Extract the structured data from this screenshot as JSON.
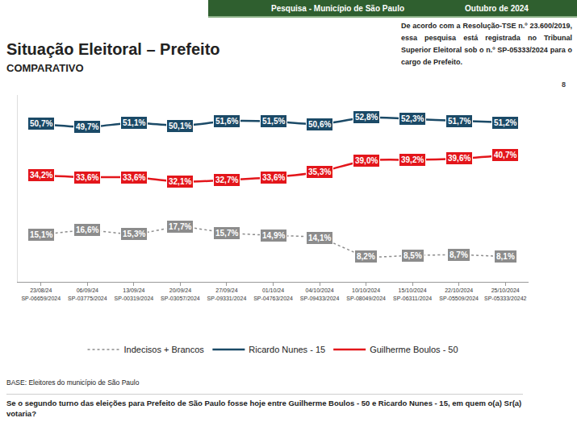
{
  "page": {
    "header_left": "Pesquisa - Município de São Paulo",
    "header_right": "Outubro de 2024",
    "registration_note": "De acordo com a Resolução-TSE n.º 23.600/2019, essa pesquisa está registrada no Tribunal Superior Eleitoral sob o n.º SP-05333/2024 para o cargo de Prefeito.",
    "page_number": "8",
    "base_note": "BASE: Eleitores do município de São Paulo",
    "question": "Se o segundo turno das eleições para Prefeito de São Paulo fosse hoje entre Guilherme Boulos - 50 e Ricardo Nunes - 15, em quem o(a) Sr(a) votaria?"
  },
  "chart_data": {
    "type": "line",
    "title": "Situação Eleitoral – Prefeito",
    "subtitle": "COMPARATIVO",
    "categories": [
      "23/08/24",
      "06/09/24",
      "13/09/24",
      "20/09/24",
      "27/09/24",
      "01/10/24",
      "04/10/2024",
      "10/10/2024",
      "15/10/2024",
      "22/10/2024",
      "25/10/2024"
    ],
    "category_registrations": [
      "SP-06659/2024",
      "SP-03775/2024",
      "SP-00319/2024",
      "SP-03057/2024",
      "SP-09331/2024",
      "SP-04763/2024",
      "SP-09433/2024",
      "SP-08049/2024",
      "SP-06311/2024",
      "SP-05509/2024",
      "SP-05333/20242"
    ],
    "ylim": [
      0,
      60
    ],
    "yticks": [],
    "tick_labels": "x",
    "grid": false,
    "legend": "bottom",
    "data_labels": true,
    "series": [
      {
        "name": "Indecisos + Brancos",
        "color": "#8c8c8c",
        "line_style": "dotted",
        "marker": "none",
        "values": [
          15.1,
          16.6,
          15.3,
          17.7,
          15.7,
          14.9,
          14.1,
          8.2,
          8.5,
          8.7,
          8.1
        ],
        "value_labels": [
          "15,1%",
          "16,6%",
          "15,3%",
          "17,7%",
          "15,7%",
          "14,9%",
          "14,1%",
          "8,2%",
          "8,5%",
          "8,7%",
          "8,1%"
        ]
      },
      {
        "name": "Ricardo Nunes - 15",
        "color": "#1b4a67",
        "line_style": "solid",
        "marker": "none",
        "values": [
          50.7,
          49.7,
          51.1,
          50.1,
          51.6,
          51.5,
          50.6,
          52.8,
          52.3,
          51.7,
          51.2
        ],
        "value_labels": [
          "50,7%",
          "49,7%",
          "51,1%",
          "50,1%",
          "51,6%",
          "51,5%",
          "50,6%",
          "52,8%",
          "52,3%",
          "51,7%",
          "51,2%"
        ]
      },
      {
        "name": "Guilherme Boulos - 50",
        "color": "#e3161b",
        "line_style": "solid",
        "marker": "none",
        "values": [
          34.2,
          33.6,
          33.6,
          32.1,
          32.7,
          33.6,
          35.3,
          39.0,
          39.2,
          39.6,
          40.7
        ],
        "value_labels": [
          "34,2%",
          "33,6%",
          "33,6%",
          "32,1%",
          "32,7%",
          "33,6%",
          "35,3%",
          "39,0%",
          "39,2%",
          "39,6%",
          "40,7%"
        ]
      }
    ]
  }
}
